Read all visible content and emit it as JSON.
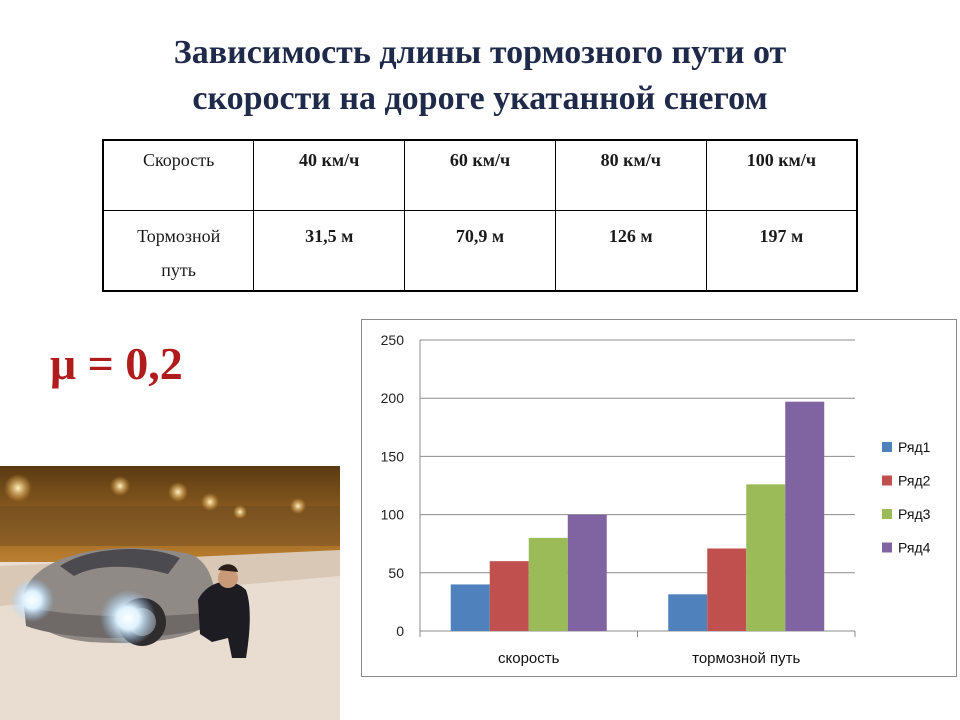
{
  "slide": {
    "title_line1": "Зависимость длины тормозного пути от",
    "title_line2": "скорости на дороге укатанной снегом",
    "mu": "μ = 0,2"
  },
  "table": {
    "header": [
      "Скорость",
      "40 км/ч",
      "60 км/ч",
      "80 км/ч",
      "100 км/ч"
    ],
    "row": [
      "Тормозной путь",
      "31,5 м",
      "70,9 м",
      "126 м",
      "197 м"
    ]
  },
  "photo": {
    "icon": "snowy-car-photo"
  },
  "colors": {
    "title": "#1f2a4a",
    "mu": "#b01c1c"
  },
  "chart_data": {
    "type": "bar",
    "categories": [
      "скорость",
      "тормозной путь"
    ],
    "series": [
      {
        "name": "Ряд1",
        "values": [
          40,
          31.5
        ],
        "color": "#4f81bd"
      },
      {
        "name": "Ряд2",
        "values": [
          60,
          70.9
        ],
        "color": "#c0504d"
      },
      {
        "name": "Ряд3",
        "values": [
          80,
          126
        ],
        "color": "#9bbb59"
      },
      {
        "name": "Ряд4",
        "values": [
          100,
          197
        ],
        "color": "#8064a2"
      }
    ],
    "ylim": [
      0,
      250
    ],
    "yticks": [
      0,
      50,
      100,
      150,
      200,
      250
    ],
    "grid": true,
    "legend": "right"
  }
}
